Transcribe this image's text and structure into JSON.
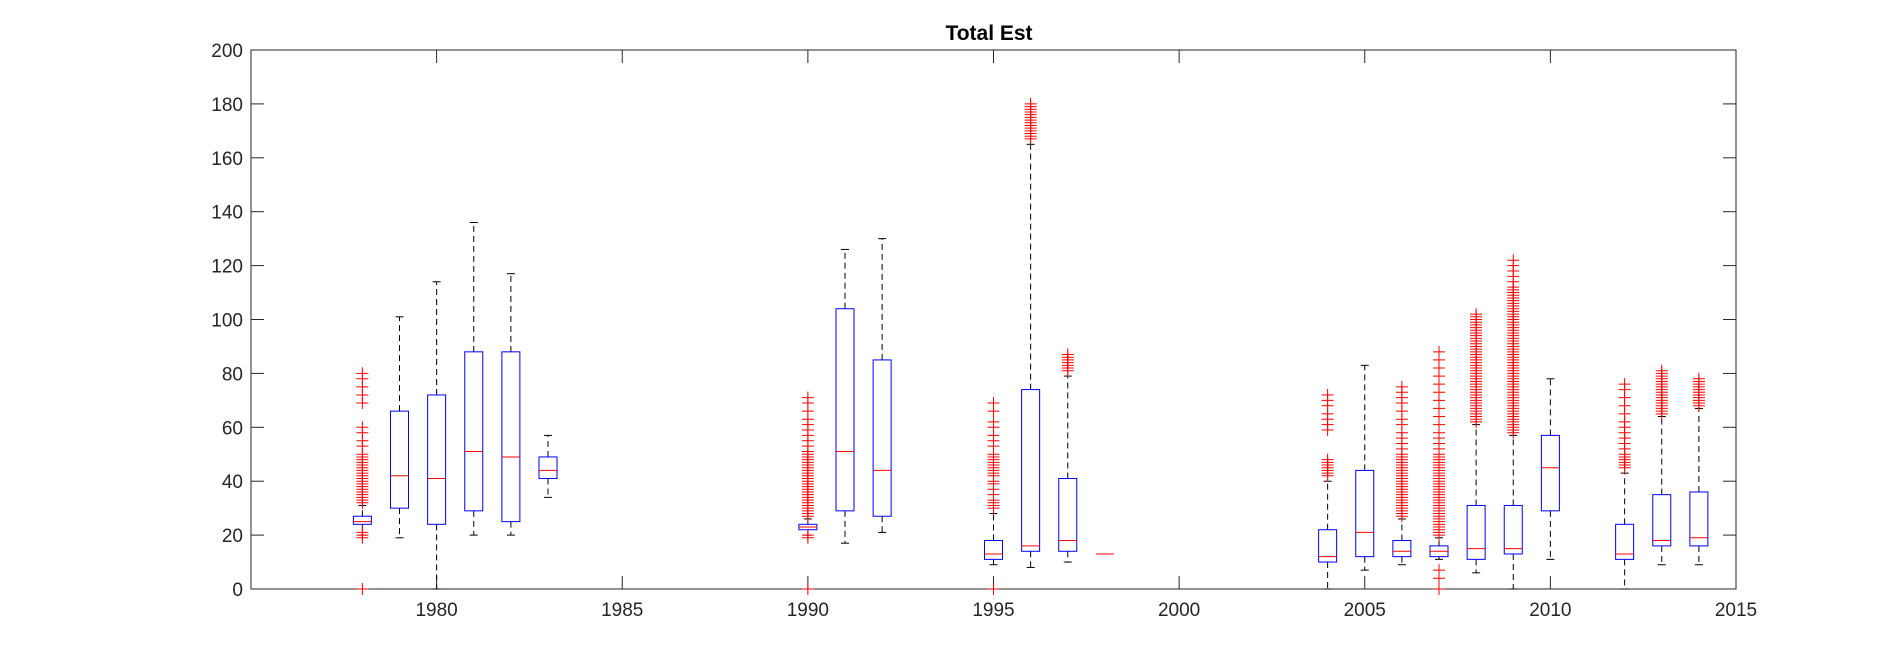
{
  "chart_data": {
    "type": "boxplot",
    "title": "Total Est",
    "xlabel": "",
    "ylabel": "",
    "xlim": [
      1975,
      2015
    ],
    "ylim": [
      0,
      200
    ],
    "xticks": [
      1980,
      1985,
      1990,
      1995,
      2000,
      2005,
      2010,
      2015
    ],
    "yticks": [
      0,
      20,
      40,
      60,
      80,
      100,
      120,
      140,
      160,
      180,
      200
    ],
    "grid": false,
    "box_color": "#0000ff",
    "median_color": "#ff0000",
    "whisker_color": "#000000",
    "outlier_color": "#ff0000",
    "boxes": [
      {
        "x": 1978,
        "whisker_low": 20,
        "q1": 24,
        "median": 25,
        "q3": 27,
        "whisker_high": 31,
        "outliers": [
          0,
          19,
          20,
          21,
          32,
          33,
          34,
          35,
          36,
          37,
          38,
          39,
          40,
          41,
          42,
          43,
          44,
          45,
          46,
          47,
          48,
          49,
          50,
          53,
          55,
          58,
          60,
          69,
          72,
          75,
          78,
          80
        ]
      },
      {
        "x": 1979,
        "whisker_low": 19,
        "q1": 30,
        "median": 42,
        "q3": 66,
        "whisker_high": 101,
        "outliers": []
      },
      {
        "x": 1980,
        "whisker_low": 0,
        "q1": 24,
        "median": 41,
        "q3": 72,
        "whisker_high": 114,
        "outliers": []
      },
      {
        "x": 1981,
        "whisker_low": 20,
        "q1": 29,
        "median": 51,
        "q3": 88,
        "whisker_high": 136,
        "outliers": []
      },
      {
        "x": 1982,
        "whisker_low": 20,
        "q1": 25,
        "median": 49,
        "q3": 88,
        "whisker_high": 117,
        "outliers": []
      },
      {
        "x": 1983,
        "whisker_low": 34,
        "q1": 41,
        "median": 44,
        "q3": 49,
        "whisker_high": 57,
        "outliers": []
      },
      {
        "x": 1990,
        "whisker_low": 20,
        "q1": 22,
        "median": 23,
        "q3": 24,
        "whisker_high": 26,
        "outliers": [
          0,
          19,
          20,
          27,
          28,
          29,
          30,
          31,
          32,
          33,
          34,
          35,
          36,
          37,
          38,
          39,
          40,
          41,
          42,
          43,
          44,
          45,
          46,
          47,
          48,
          49,
          50,
          51,
          53,
          55,
          57,
          59,
          61,
          63,
          66,
          69,
          71
        ]
      },
      {
        "x": 1991,
        "whisker_low": 17,
        "q1": 29,
        "median": 51,
        "q3": 104,
        "whisker_high": 126,
        "outliers": []
      },
      {
        "x": 1992,
        "whisker_low": 21,
        "q1": 27,
        "median": 44,
        "q3": 85,
        "whisker_high": 130,
        "outliers": []
      },
      {
        "x": 1995,
        "whisker_low": 9,
        "q1": 11,
        "median": 13,
        "q3": 18,
        "whisker_high": 28,
        "outliers": [
          0,
          30,
          31,
          32,
          33,
          35,
          37,
          39,
          40,
          42,
          43,
          44,
          45,
          46,
          47,
          48,
          49,
          50,
          53,
          55,
          57,
          60,
          62,
          66,
          69
        ]
      },
      {
        "x": 1996,
        "whisker_low": 8,
        "q1": 14,
        "median": 16,
        "q3": 74,
        "whisker_high": 165,
        "outliers": [
          167,
          168,
          169,
          170,
          171,
          172,
          173,
          174,
          175,
          176,
          177,
          178,
          179,
          180
        ]
      },
      {
        "x": 1997,
        "whisker_low": 10,
        "q1": 14,
        "median": 18,
        "q3": 41,
        "whisker_high": 79,
        "outliers": [
          81,
          82,
          83,
          84,
          85,
          86,
          87
        ]
      },
      {
        "x": 1998,
        "whisker_low": 13,
        "q1": 13,
        "median": 13,
        "q3": 13,
        "whisker_high": 13,
        "outliers": []
      },
      {
        "x": 2004,
        "whisker_low": 0,
        "q1": 10,
        "median": 12,
        "q3": 22,
        "whisker_high": 40,
        "outliers": [
          42,
          43,
          44,
          45,
          46,
          47,
          48,
          59,
          61,
          63,
          65,
          68,
          70,
          72
        ]
      },
      {
        "x": 2005,
        "whisker_low": 7,
        "q1": 12,
        "median": 21,
        "q3": 44,
        "whisker_high": 83,
        "outliers": []
      },
      {
        "x": 2006,
        "whisker_low": 9,
        "q1": 12,
        "median": 14,
        "q3": 18,
        "whisker_high": 26,
        "outliers": [
          27,
          28,
          29,
          30,
          31,
          32,
          33,
          34,
          35,
          36,
          37,
          38,
          39,
          40,
          41,
          42,
          43,
          44,
          45,
          46,
          47,
          48,
          49,
          50,
          52,
          54,
          56,
          58,
          61,
          63,
          66,
          69,
          71,
          73,
          75
        ]
      },
      {
        "x": 2007,
        "whisker_low": 11,
        "q1": 12,
        "median": 14,
        "q3": 16,
        "whisker_high": 19,
        "outliers": [
          0,
          4,
          7,
          20,
          21,
          22,
          23,
          24,
          25,
          26,
          27,
          28,
          29,
          30,
          31,
          32,
          33,
          34,
          35,
          36,
          37,
          38,
          39,
          40,
          41,
          42,
          43,
          44,
          45,
          46,
          47,
          48,
          49,
          50,
          52,
          54,
          56,
          58,
          61,
          64,
          67,
          70,
          73,
          76,
          79,
          82,
          85,
          88
        ]
      },
      {
        "x": 2008,
        "whisker_low": 6,
        "q1": 11,
        "median": 15,
        "q3": 31,
        "whisker_high": 61,
        "outliers": [
          62,
          63,
          64,
          65,
          66,
          67,
          68,
          69,
          70,
          71,
          72,
          73,
          74,
          75,
          76,
          77,
          78,
          79,
          80,
          81,
          82,
          83,
          84,
          85,
          86,
          87,
          88,
          89,
          90,
          91,
          92,
          93,
          94,
          95,
          96,
          97,
          98,
          99,
          100,
          101,
          102
        ]
      },
      {
        "x": 2009,
        "whisker_low": 0,
        "q1": 13,
        "median": 15,
        "q3": 31,
        "whisker_high": 57,
        "outliers": [
          58,
          59,
          60,
          61,
          62,
          63,
          64,
          65,
          66,
          67,
          68,
          69,
          70,
          71,
          72,
          73,
          74,
          75,
          76,
          77,
          78,
          79,
          80,
          81,
          82,
          83,
          84,
          85,
          86,
          87,
          88,
          89,
          90,
          91,
          92,
          93,
          94,
          95,
          96,
          97,
          98,
          99,
          100,
          101,
          102,
          103,
          104,
          105,
          106,
          107,
          108,
          109,
          110,
          111,
          112,
          114,
          116,
          118,
          120,
          122
        ]
      },
      {
        "x": 2010,
        "whisker_low": 11,
        "q1": 29,
        "median": 45,
        "q3": 57,
        "whisker_high": 78,
        "outliers": []
      },
      {
        "x": 2012,
        "whisker_low": 0,
        "q1": 11,
        "median": 13,
        "q3": 24,
        "whisker_high": 43,
        "outliers": [
          45,
          46,
          47,
          48,
          49,
          50,
          52,
          54,
          56,
          58,
          60,
          62,
          65,
          68,
          71,
          74,
          76
        ]
      },
      {
        "x": 2013,
        "whisker_low": 9,
        "q1": 16,
        "median": 18,
        "q3": 35,
        "whisker_high": 64,
        "outliers": [
          65,
          66,
          67,
          68,
          69,
          70,
          71,
          72,
          73,
          74,
          75,
          76,
          77,
          78,
          79,
          80,
          81
        ]
      },
      {
        "x": 2014,
        "whisker_low": 9,
        "q1": 16,
        "median": 19,
        "q3": 36,
        "whisker_high": 67,
        "outliers": [
          68,
          69,
          70,
          71,
          72,
          73,
          74,
          75,
          76,
          77,
          78
        ]
      }
    ]
  }
}
